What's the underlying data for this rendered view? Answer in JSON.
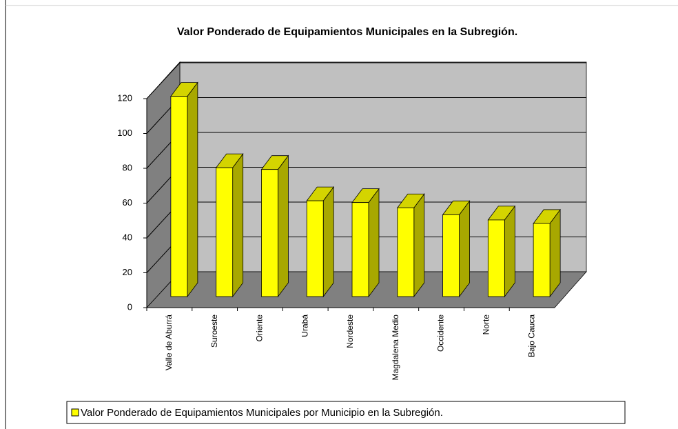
{
  "chart_data": {
    "type": "bar3d",
    "title": "Valor Ponderado de Equipamientos Municipales en la Subregión.",
    "categories": [
      "Valle de Aburrá",
      "Suroeste",
      "Oriente",
      "Urabá",
      "Nordeste",
      "Magdalena Medio",
      "Occidente",
      "Norte",
      "Bajo Cauca"
    ],
    "series": [
      {
        "name": "Valor Ponderado de Equipamientos Municipales por Municipio en la Subregión.",
        "color": "#ffff00",
        "values": [
          115,
          74,
          73,
          55,
          54,
          51,
          47,
          44,
          42
        ]
      }
    ],
    "ylim": [
      0,
      120
    ],
    "yticks": [
      0,
      20,
      40,
      60,
      80,
      100,
      120
    ],
    "grid": true,
    "legend": "bottom"
  }
}
